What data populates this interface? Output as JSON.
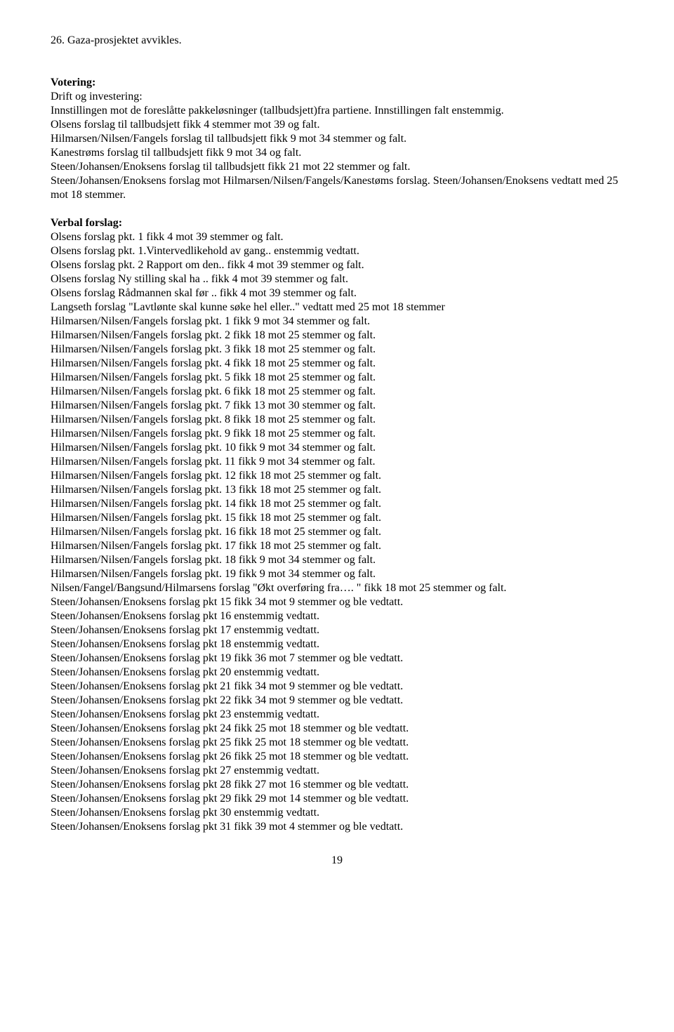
{
  "line_26": "26.  Gaza-prosjektet avvikles.",
  "votering_heading": "Votering:",
  "p1_l1": "Drift og investering:",
  "p1_l2": "Innstillingen mot de foreslåtte pakkeløsninger (tallbudsjett)fra partiene.  Innstillingen falt enstemmig.",
  "p1_l3": "Olsens forslag til tallbudsjett fikk 4 stemmer mot 39 og falt.",
  "p1_l4": "Hilmarsen/Nilsen/Fangels forslag til tallbudsjett fikk 9 mot 34 stemmer og falt.",
  "p1_l5": "Kanestrøms forslag til tallbudsjett fikk 9 mot 34 og falt.",
  "p1_l6": "Steen/Johansen/Enoksens forslag til tallbudsjett fikk 21 mot 22 stemmer og falt.",
  "p1_l7": "Steen/Johansen/Enoksens forslag mot Hilmarsen/Nilsen/Fangels/Kanestøms forslag. Steen/Johansen/Enoksens vedtatt med 25 mot 18 stemmer.",
  "verbal_heading": "Verbal forslag:",
  "vlines": [
    "Olsens forslag pkt. 1 fikk 4 mot 39 stemmer og falt.",
    "Olsens forslag pkt. 1.Vintervedlikehold av gang.. enstemmig vedtatt.",
    "Olsens forslag pkt. 2 Rapport om den.. fikk 4 mot 39 stemmer og falt.",
    "Olsens forslag Ny stilling skal ha .. fikk 4 mot 39 stemmer og falt.",
    "Olsens forslag Rådmannen skal før  .. fikk 4 mot 39 stemmer og falt.",
    "Langseth forslag \"Lavtlønte skal kunne søke hel eller..\" vedtatt med 25 mot 18 stemmer",
    "Hilmarsen/Nilsen/Fangels forslag pkt. 1 fikk 9 mot 34 stemmer og falt.",
    "Hilmarsen/Nilsen/Fangels forslag pkt. 2 fikk 18 mot 25 stemmer og falt.",
    "Hilmarsen/Nilsen/Fangels forslag pkt. 3 fikk 18 mot 25 stemmer og falt.",
    "Hilmarsen/Nilsen/Fangels forslag pkt. 4 fikk 18 mot 25 stemmer og falt.",
    "Hilmarsen/Nilsen/Fangels forslag pkt. 5 fikk 18 mot 25 stemmer og falt.",
    "Hilmarsen/Nilsen/Fangels forslag pkt. 6 fikk 18 mot 25 stemmer og falt.",
    "Hilmarsen/Nilsen/Fangels forslag pkt. 7 fikk 13 mot 30 stemmer og falt.",
    "Hilmarsen/Nilsen/Fangels forslag pkt. 8 fikk 18 mot 25 stemmer og falt.",
    "Hilmarsen/Nilsen/Fangels forslag pkt. 9 fikk 18 mot 25 stemmer og falt.",
    "Hilmarsen/Nilsen/Fangels forslag pkt. 10 fikk 9 mot 34 stemmer og falt.",
    "Hilmarsen/Nilsen/Fangels forslag pkt. 11 fikk 9 mot 34 stemmer og falt.",
    "Hilmarsen/Nilsen/Fangels forslag pkt. 12 fikk 18 mot 25 stemmer og falt.",
    "Hilmarsen/Nilsen/Fangels forslag pkt. 13 fikk 18 mot 25 stemmer og falt.",
    "Hilmarsen/Nilsen/Fangels forslag pkt. 14 fikk 18 mot 25 stemmer og falt.",
    "Hilmarsen/Nilsen/Fangels forslag pkt. 15 fikk 18 mot 25 stemmer og falt.",
    "Hilmarsen/Nilsen/Fangels forslag pkt. 16 fikk 18 mot 25 stemmer og falt.",
    "Hilmarsen/Nilsen/Fangels forslag pkt. 17 fikk 18 mot 25 stemmer og falt.",
    "Hilmarsen/Nilsen/Fangels forslag pkt. 18 fikk 9 mot 34 stemmer og falt.",
    "Hilmarsen/Nilsen/Fangels forslag pkt. 19 fikk 9 mot 34 stemmer og falt.",
    "Nilsen/Fangel/Bangsund/Hilmarsens forslag \"Økt overføring fra…. \" fikk 18 mot 25 stemmer og falt.",
    "Steen/Johansen/Enoksens forslag pkt 15 fikk 34 mot 9 stemmer og ble vedtatt.",
    "Steen/Johansen/Enoksens forslag pkt 16 enstemmig vedtatt.",
    "Steen/Johansen/Enoksens forslag pkt 17 enstemmig vedtatt.",
    "Steen/Johansen/Enoksens forslag pkt 18 enstemmig vedtatt.",
    "Steen/Johansen/Enoksens forslag pkt 19 fikk 36 mot 7 stemmer og ble vedtatt.",
    "Steen/Johansen/Enoksens forslag pkt 20 enstemmig vedtatt.",
    "Steen/Johansen/Enoksens forslag pkt 21 fikk 34 mot 9 stemmer og ble vedtatt.",
    "Steen/Johansen/Enoksens forslag pkt 22 fikk 34 mot 9 stemmer og ble vedtatt.",
    "Steen/Johansen/Enoksens forslag pkt 23 enstemmig vedtatt.",
    "Steen/Johansen/Enoksens forslag pkt 24 fikk 25 mot 18 stemmer og ble vedtatt.",
    "Steen/Johansen/Enoksens forslag pkt 25 fikk 25 mot 18 stemmer og ble vedtatt.",
    "Steen/Johansen/Enoksens forslag pkt 26 fikk 25 mot 18 stemmer og ble vedtatt.",
    "Steen/Johansen/Enoksens forslag pkt 27 enstemmig vedtatt.",
    "Steen/Johansen/Enoksens forslag pkt 28 fikk 27 mot 16 stemmer og ble vedtatt.",
    "Steen/Johansen/Enoksens forslag pkt 29 fikk 29 mot 14 stemmer og ble vedtatt.",
    "Steen/Johansen/Enoksens forslag pkt 30 enstemmig vedtatt.",
    "Steen/Johansen/Enoksens forslag pkt 31 fikk 39 mot 4 stemmer og ble vedtatt."
  ],
  "page_number": "19"
}
